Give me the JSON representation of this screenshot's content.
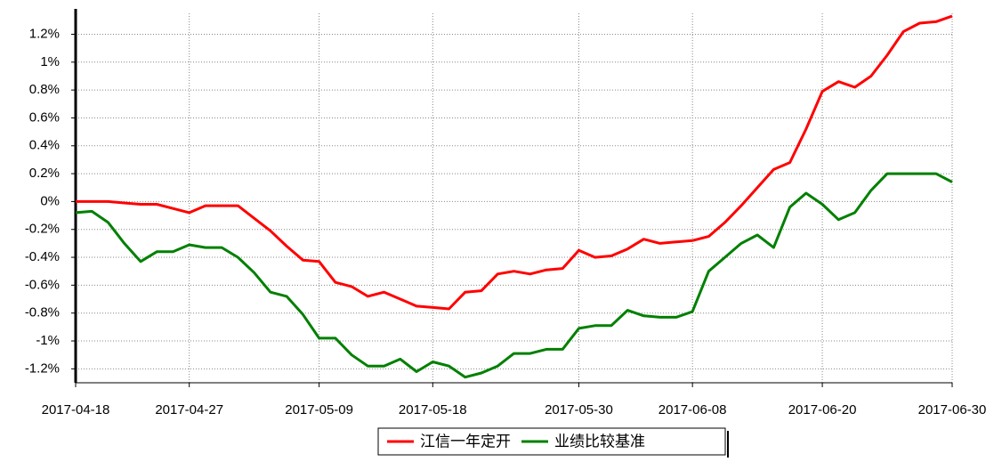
{
  "chart_data": {
    "type": "line",
    "categories": [
      "2017-04-18",
      null,
      null,
      null,
      null,
      null,
      null,
      "2017-04-27",
      null,
      null,
      null,
      null,
      null,
      null,
      null,
      "2017-05-09",
      null,
      null,
      null,
      null,
      null,
      null,
      "2017-05-18",
      null,
      null,
      null,
      null,
      null,
      null,
      null,
      null,
      "2017-05-30",
      null,
      null,
      null,
      null,
      null,
      null,
      "2017-06-08",
      null,
      null,
      null,
      null,
      null,
      null,
      null,
      "2017-06-20",
      null,
      null,
      null,
      null,
      null,
      null,
      null,
      "2017-06-30"
    ],
    "series": [
      {
        "name": "江信一年定开",
        "color": "#ff0000",
        "values": [
          0,
          0,
          0,
          -0.01,
          -0.02,
          -0.02,
          -0.05,
          -0.08,
          -0.03,
          -0.03,
          -0.03,
          -0.12,
          -0.21,
          -0.32,
          -0.42,
          -0.43,
          -0.58,
          -0.61,
          -0.68,
          -0.65,
          -0.7,
          -0.75,
          -0.76,
          -0.77,
          -0.65,
          -0.64,
          -0.52,
          -0.5,
          -0.52,
          -0.49,
          -0.48,
          -0.35,
          -0.4,
          -0.39,
          -0.34,
          -0.27,
          -0.3,
          -0.29,
          -0.28,
          -0.25,
          -0.15,
          -0.03,
          0.1,
          0.23,
          0.28,
          0.52,
          0.79,
          0.86,
          0.82,
          0.9,
          1.05,
          1.22,
          1.28,
          1.29,
          1.33
        ]
      },
      {
        "name": "业绩比较基准",
        "color": "#008000",
        "values": [
          -0.08,
          -0.07,
          -0.15,
          -0.3,
          -0.43,
          -0.36,
          -0.36,
          -0.31,
          -0.33,
          -0.33,
          -0.4,
          -0.51,
          -0.65,
          -0.68,
          -0.81,
          -0.98,
          -0.98,
          -1.1,
          -1.18,
          -1.18,
          -1.13,
          -1.22,
          -1.15,
          -1.18,
          -1.26,
          -1.23,
          -1.18,
          -1.09,
          -1.09,
          -1.06,
          -1.06,
          -0.91,
          -0.89,
          -0.89,
          -0.78,
          -0.82,
          -0.83,
          -0.83,
          -0.79,
          -0.5,
          -0.4,
          -0.3,
          -0.24,
          -0.33,
          -0.04,
          0.06,
          -0.02,
          -0.13,
          -0.08,
          0.08,
          0.2,
          0.2,
          0.2,
          0.2,
          0.14
        ]
      }
    ],
    "ylim": [
      -1.3,
      1.35
    ],
    "yticks": [
      {
        "value": -1.2,
        "label": "-1.2%"
      },
      {
        "value": -1,
        "label": "-1%"
      },
      {
        "value": -0.8,
        "label": "-0.8%"
      },
      {
        "value": -0.6,
        "label": "-0.6%"
      },
      {
        "value": -0.4,
        "label": "-0.4%"
      },
      {
        "value": -0.2,
        "label": "-0.2%"
      },
      {
        "value": 0,
        "label": "0%"
      },
      {
        "value": 0.2,
        "label": "0.2%"
      },
      {
        "value": 0.4,
        "label": "0.4%"
      },
      {
        "value": 0.6,
        "label": "0.6%"
      },
      {
        "value": 0.8,
        "label": "0.8%"
      },
      {
        "value": 1,
        "label": "1%"
      },
      {
        "value": 1.2,
        "label": "1.2%"
      }
    ],
    "grid": true,
    "legend": "bottom"
  }
}
